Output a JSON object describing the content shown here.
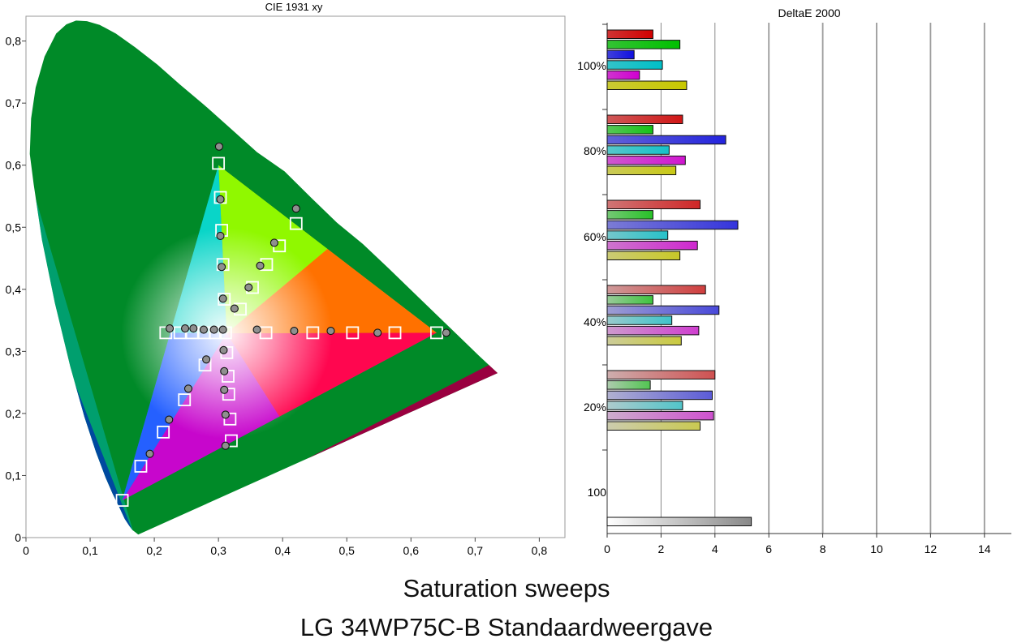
{
  "caption": {
    "line1": "Saturation sweeps",
    "line2": "LG 34WP75C-B Standaardweergave"
  },
  "chart_data": [
    {
      "type": "scatter",
      "title": "CIE 1931 xy",
      "xlabel": "",
      "ylabel": "",
      "xlim": [
        0,
        0.84
      ],
      "ylim": [
        0,
        0.84
      ],
      "x_ticks": [
        "0",
        "0,1",
        "0,2",
        "0,3",
        "0,4",
        "0,5",
        "0,6",
        "0,7",
        "0,8"
      ],
      "y_ticks": [
        "0",
        "0,1",
        "0,2",
        "0,3",
        "0,4",
        "0,5",
        "0,6",
        "0,7",
        "0,8"
      ],
      "gamut_triangle": {
        "red": [
          0.64,
          0.33
        ],
        "green": [
          0.3,
          0.6
        ],
        "blue": [
          0.15,
          0.06
        ],
        "white": [
          0.3127,
          0.329
        ]
      },
      "series": [
        {
          "name": "",
          "marker": "square",
          "points": [
            [
              0.64,
              0.33
            ],
            [
              0.575,
              0.33
            ],
            [
              0.509,
              0.33
            ],
            [
              0.447,
              0.33
            ],
            [
              0.374,
              0.33
            ],
            [
              0.3,
              0.603
            ],
            [
              0.303,
              0.548
            ],
            [
              0.305,
              0.495
            ],
            [
              0.307,
              0.44
            ],
            [
              0.309,
              0.384
            ],
            [
              0.421,
              0.506
            ],
            [
              0.395,
              0.47
            ],
            [
              0.375,
              0.44
            ],
            [
              0.353,
              0.403
            ],
            [
              0.334,
              0.368
            ],
            [
              0.15,
              0.06
            ],
            [
              0.179,
              0.115
            ],
            [
              0.214,
              0.17
            ],
            [
              0.247,
              0.222
            ],
            [
              0.279,
              0.278
            ],
            [
              0.311,
              0.33
            ],
            [
              0.295,
              0.33
            ],
            [
              0.278,
              0.33
            ],
            [
              0.259,
              0.33
            ],
            [
              0.24,
              0.33
            ],
            [
              0.218,
              0.33
            ],
            [
              0.32,
              0.156
            ],
            [
              0.318,
              0.191
            ],
            [
              0.316,
              0.231
            ],
            [
              0.315,
              0.26
            ],
            [
              0.313,
              0.298
            ]
          ]
        },
        {
          "name": "",
          "marker": "circle",
          "points": [
            [
              0.655,
              0.33
            ],
            [
              0.548,
              0.33
            ],
            [
              0.475,
              0.333
            ],
            [
              0.418,
              0.333
            ],
            [
              0.36,
              0.335
            ],
            [
              0.301,
              0.63
            ],
            [
              0.303,
              0.545
            ],
            [
              0.303,
              0.486
            ],
            [
              0.305,
              0.436
            ],
            [
              0.307,
              0.385
            ],
            [
              0.421,
              0.53
            ],
            [
              0.387,
              0.475
            ],
            [
              0.365,
              0.438
            ],
            [
              0.347,
              0.403
            ],
            [
              0.325,
              0.369
            ],
            [
              0.193,
              0.135
            ],
            [
              0.223,
              0.19
            ],
            [
              0.253,
              0.24
            ],
            [
              0.281,
              0.287
            ],
            [
              0.224,
              0.337
            ],
            [
              0.248,
              0.337
            ],
            [
              0.261,
              0.337
            ],
            [
              0.277,
              0.335
            ],
            [
              0.293,
              0.335
            ],
            [
              0.307,
              0.335
            ],
            [
              0.311,
              0.148
            ],
            [
              0.311,
              0.198
            ],
            [
              0.309,
              0.238
            ],
            [
              0.309,
              0.268
            ],
            [
              0.308,
              0.302
            ]
          ]
        }
      ]
    },
    {
      "type": "bar",
      "orientation": "horizontal",
      "title": "DeltaE 2000",
      "xlabel": "",
      "ylabel": "",
      "xlim": [
        0,
        15
      ],
      "x_ticks": [
        "0",
        "2",
        "4",
        "6",
        "8",
        "10",
        "12",
        "14"
      ],
      "group_labels": [
        "100%",
        "80%",
        "60%",
        "40%",
        "20%",
        "100"
      ],
      "series": [
        {
          "name": "",
          "color": "#d10000",
          "values": [
            1.7,
            2.8,
            3.45,
            3.65,
            4.0
          ]
        },
        {
          "name": "",
          "color": "#00c000",
          "values": [
            2.7,
            1.7,
            1.7,
            1.7,
            1.6
          ]
        },
        {
          "name": "",
          "color": "#1010e0",
          "values": [
            1.0,
            4.4,
            4.85,
            4.15,
            3.9
          ]
        },
        {
          "name": "",
          "color": "#00c0c8",
          "values": [
            2.05,
            2.3,
            2.25,
            2.4,
            2.8
          ]
        },
        {
          "name": "",
          "color": "#d000d0",
          "values": [
            1.2,
            2.9,
            3.35,
            3.4,
            3.95
          ]
        },
        {
          "name": "",
          "color": "#c8c800",
          "values": [
            2.95,
            2.55,
            2.7,
            2.75,
            3.45
          ]
        }
      ],
      "white_value": 5.35
    }
  ]
}
